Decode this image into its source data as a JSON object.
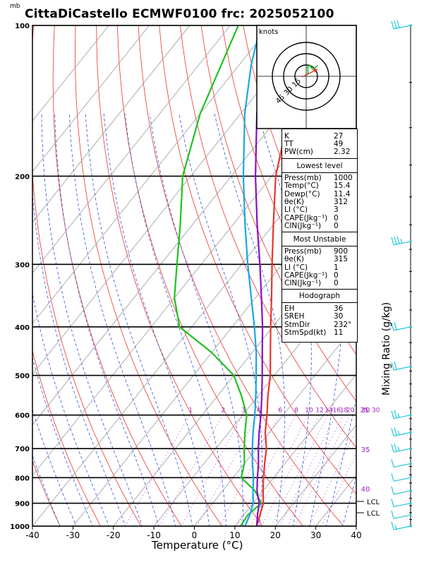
{
  "header": {
    "title": "CittaDiCastello ECMWF0100 frc: 2025052100",
    "pressure_unit": "mb"
  },
  "axes": {
    "xlabel": "Temperature (°C)",
    "mixing_label": "Mixing Ratio (g/kg)"
  },
  "hodograph": {
    "unit": "knots",
    "rings": [
      "15",
      "30",
      "45"
    ]
  },
  "indices": {
    "k_label": "K",
    "k": "27",
    "tt_label": "TT",
    "tt": "49",
    "pw_label": "PW(cm)",
    "pw": "2.32",
    "lowest_title": "Lowest level",
    "lowest": [
      {
        "label": "Press(mb)",
        "value": "1000"
      },
      {
        "label": "Temp(°C)",
        "value": "15.4"
      },
      {
        "label": "Dewp(°C)",
        "value": "11.4"
      },
      {
        "label": "θe(K)",
        "value": "312"
      },
      {
        "label": "LI (°C)",
        "value": "3"
      },
      {
        "label": "CAPE(Jkg⁻¹)",
        "value": "0"
      },
      {
        "label": "CIN(Jkg⁻¹)",
        "value": "0"
      }
    ],
    "unstable_title": "Most Unstable",
    "unstable": [
      {
        "label": "Press(mb)",
        "value": "900"
      },
      {
        "label": "θe(K)",
        "value": "315"
      },
      {
        "label": "LI (°C)",
        "value": "1"
      },
      {
        "label": "CAPE(Jkg⁻¹)",
        "value": "0"
      },
      {
        "label": "CIN(Jkg⁻¹)",
        "value": "0"
      }
    ],
    "hodo_title": "Hodograph",
    "hodo": [
      {
        "label": "EH",
        "value": "36"
      },
      {
        "label": "SREH",
        "value": "30"
      },
      {
        "label": "StmDir",
        "value": "232°"
      },
      {
        "label": "StmSpd(kt)",
        "value": "11"
      }
    ]
  },
  "chart_data": {
    "type": "line",
    "title": "CittaDiCastello ECMWF0100 frc: 2025052100",
    "xlabel": "Temperature (°C)",
    "ylabel": "mb",
    "xlim": [
      -40,
      40
    ],
    "ylim": [
      1000,
      100
    ],
    "y_scale": "log",
    "x_ticks": [
      "-40",
      "-30",
      "-20",
      "-10",
      "0",
      "10",
      "20",
      "30",
      "40"
    ],
    "y_ticks": [
      "100",
      "200",
      "300",
      "400",
      "500",
      "600",
      "700",
      "800",
      "900",
      "1000"
    ],
    "mixing_ratio_labels": [
      "1",
      "2",
      "3",
      "4",
      "6",
      "8",
      "10",
      "12",
      "14",
      "16",
      "18",
      "20",
      "25",
      "30"
    ],
    "theta_e_labels": [
      "30",
      "35",
      "40"
    ],
    "lcl_labels": [
      "LCL",
      "LCL"
    ],
    "series": [
      {
        "values": [
          [
            1000,
            15.4
          ],
          [
            950,
            14
          ],
          [
            900,
            12.5
          ],
          [
            850,
            10
          ],
          [
            800,
            7.5
          ],
          [
            750,
            5
          ],
          [
            700,
            2.5
          ],
          [
            650,
            -1
          ],
          [
            600,
            -4
          ],
          [
            550,
            -7.5
          ],
          [
            500,
            -11
          ],
          [
            450,
            -15.5
          ],
          [
            400,
            -20.5
          ],
          [
            350,
            -26
          ],
          [
            300,
            -32.5
          ],
          [
            250,
            -40
          ],
          [
            200,
            -49
          ],
          [
            150,
            -58
          ],
          [
            120,
            -64
          ],
          [
            105,
            -67
          ]
        ]
      },
      {
        "values": [
          [
            1000,
            11.4
          ],
          [
            950,
            11
          ],
          [
            900,
            12
          ],
          [
            850,
            8
          ],
          [
            800,
            2
          ],
          [
            750,
            0
          ],
          [
            700,
            -3
          ],
          [
            650,
            -6
          ],
          [
            600,
            -9
          ],
          [
            550,
            -14
          ],
          [
            500,
            -20
          ],
          [
            450,
            -30
          ],
          [
            400,
            -43
          ],
          [
            350,
            -50
          ],
          [
            300,
            -56
          ],
          [
            250,
            -63
          ],
          [
            200,
            -72
          ],
          [
            150,
            -80
          ],
          [
            100,
            -88
          ]
        ]
      },
      {
        "values": [
          [
            1000,
            15.4
          ],
          [
            950,
            13.4
          ],
          [
            900,
            11.5
          ],
          [
            850,
            8.5
          ],
          [
            800,
            6
          ],
          [
            750,
            3.5
          ],
          [
            700,
            0.5
          ],
          [
            650,
            -2.5
          ],
          [
            600,
            -5.5
          ],
          [
            550,
            -9
          ],
          [
            500,
            -13
          ],
          [
            450,
            -17.5
          ],
          [
            400,
            -22.5
          ],
          [
            350,
            -28.5
          ],
          [
            300,
            -35.5
          ],
          [
            250,
            -44
          ],
          [
            200,
            -54
          ],
          [
            150,
            -66
          ],
          [
            120,
            -74
          ],
          [
            105,
            -78
          ]
        ]
      },
      {
        "values": [
          [
            1000,
            12.5
          ],
          [
            950,
            11.5
          ],
          [
            900,
            10
          ],
          [
            850,
            7.5
          ],
          [
            800,
            5
          ],
          [
            750,
            2
          ],
          [
            700,
            -1
          ],
          [
            650,
            -4
          ],
          [
            600,
            -7
          ],
          [
            550,
            -10.5
          ],
          [
            500,
            -14.5
          ],
          [
            450,
            -19
          ],
          [
            400,
            -24.5
          ],
          [
            350,
            -31
          ],
          [
            300,
            -38.5
          ],
          [
            250,
            -47
          ],
          [
            200,
            -57
          ],
          [
            150,
            -69
          ],
          [
            120,
            -77
          ],
          [
            105,
            -81
          ]
        ]
      }
    ],
    "series_colors": [
      "#e8352e",
      "#1ec21e",
      "#8a0fc4",
      "#19a6e0"
    ],
    "wind_barbs_kt": [
      [
        1000,
        5
      ],
      [
        950,
        10
      ],
      [
        900,
        10
      ],
      [
        850,
        10
      ],
      [
        800,
        10
      ],
      [
        750,
        10
      ],
      [
        700,
        15
      ],
      [
        650,
        15
      ],
      [
        600,
        15
      ],
      [
        480,
        20
      ],
      [
        400,
        20
      ],
      [
        270,
        25
      ],
      [
        100,
        30
      ]
    ],
    "hodograph_rings_kt": [
      15,
      30,
      45
    ]
  }
}
